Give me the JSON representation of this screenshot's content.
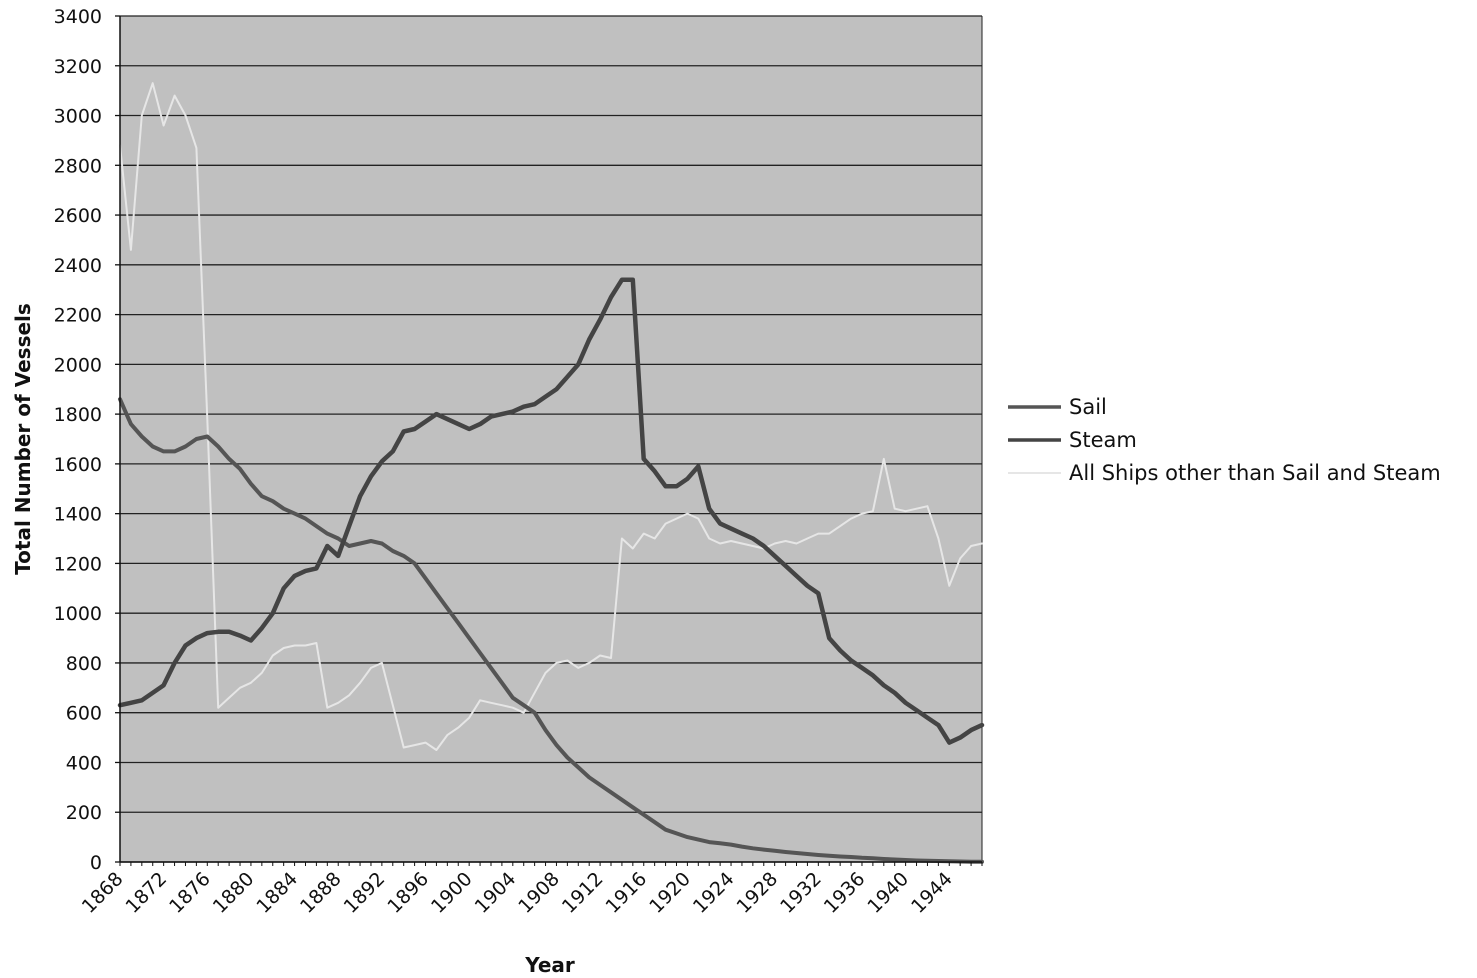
{
  "chart_data": {
    "type": "line",
    "title": "",
    "xlabel": "Year",
    "ylabel": "Total Number of Vessels",
    "ylim": [
      0,
      3400
    ],
    "xlim": [
      1868,
      1947
    ],
    "y_ticks": [
      "0",
      "200",
      "400",
      "600",
      "800",
      "1000",
      "1200",
      "1400",
      "1600",
      "1800",
      "2000",
      "2200",
      "2400",
      "2600",
      "2800",
      "3000",
      "3200",
      "3400"
    ],
    "x_ticks": [
      "1868",
      "1872",
      "1876",
      "1880",
      "1884",
      "1888",
      "1892",
      "1896",
      "1900",
      "1904",
      "1908",
      "1912",
      "1916",
      "1920",
      "1924",
      "1928",
      "1932",
      "1936",
      "1940",
      "1944"
    ],
    "grid": "horizontal",
    "legend_position": "right",
    "colors": {
      "plot_background": "#c0c0c0",
      "grid": "#222222",
      "sail": "#555555",
      "steam": "#444444",
      "other": "#e6e6e6"
    },
    "series": [
      {
        "name": "Sail",
        "color": "#555555",
        "points": [
          [
            1868,
            1860
          ],
          [
            1869,
            1760
          ],
          [
            1870,
            1710
          ],
          [
            1871,
            1670
          ],
          [
            1872,
            1650
          ],
          [
            1873,
            1650
          ],
          [
            1874,
            1670
          ],
          [
            1875,
            1700
          ],
          [
            1876,
            1710
          ],
          [
            1877,
            1670
          ],
          [
            1878,
            1620
          ],
          [
            1879,
            1580
          ],
          [
            1880,
            1520
          ],
          [
            1881,
            1470
          ],
          [
            1882,
            1450
          ],
          [
            1883,
            1420
          ],
          [
            1884,
            1400
          ],
          [
            1885,
            1380
          ],
          [
            1886,
            1350
          ],
          [
            1887,
            1320
          ],
          [
            1888,
            1300
          ],
          [
            1889,
            1270
          ],
          [
            1890,
            1280
          ],
          [
            1891,
            1290
          ],
          [
            1892,
            1280
          ],
          [
            1893,
            1250
          ],
          [
            1894,
            1230
          ],
          [
            1895,
            1200
          ],
          [
            1896,
            1140
          ],
          [
            1897,
            1080
          ],
          [
            1898,
            1020
          ],
          [
            1899,
            960
          ],
          [
            1900,
            900
          ],
          [
            1901,
            840
          ],
          [
            1902,
            780
          ],
          [
            1903,
            720
          ],
          [
            1904,
            660
          ],
          [
            1905,
            630
          ],
          [
            1906,
            600
          ],
          [
            1907,
            530
          ],
          [
            1908,
            470
          ],
          [
            1909,
            420
          ],
          [
            1910,
            380
          ],
          [
            1911,
            340
          ],
          [
            1912,
            310
          ],
          [
            1913,
            280
          ],
          [
            1914,
            250
          ],
          [
            1915,
            220
          ],
          [
            1916,
            190
          ],
          [
            1917,
            160
          ],
          [
            1918,
            130
          ],
          [
            1919,
            115
          ],
          [
            1920,
            100
          ],
          [
            1921,
            90
          ],
          [
            1922,
            80
          ],
          [
            1923,
            75
          ],
          [
            1924,
            70
          ],
          [
            1925,
            62
          ],
          [
            1926,
            55
          ],
          [
            1927,
            50
          ],
          [
            1928,
            45
          ],
          [
            1929,
            40
          ],
          [
            1930,
            36
          ],
          [
            1931,
            32
          ],
          [
            1932,
            28
          ],
          [
            1933,
            25
          ],
          [
            1934,
            22
          ],
          [
            1935,
            20
          ],
          [
            1936,
            17
          ],
          [
            1937,
            15
          ],
          [
            1938,
            12
          ],
          [
            1939,
            10
          ],
          [
            1940,
            8
          ],
          [
            1941,
            6
          ],
          [
            1942,
            5
          ],
          [
            1943,
            4
          ],
          [
            1944,
            3
          ],
          [
            1945,
            2
          ],
          [
            1946,
            1
          ],
          [
            1947,
            1
          ]
        ]
      },
      {
        "name": "Steam",
        "color": "#444444",
        "points": [
          [
            1868,
            630
          ],
          [
            1869,
            640
          ],
          [
            1870,
            650
          ],
          [
            1871,
            680
          ],
          [
            1872,
            710
          ],
          [
            1873,
            800
          ],
          [
            1874,
            870
          ],
          [
            1875,
            900
          ],
          [
            1876,
            920
          ],
          [
            1877,
            925
          ],
          [
            1878,
            925
          ],
          [
            1879,
            910
          ],
          [
            1880,
            890
          ],
          [
            1881,
            940
          ],
          [
            1882,
            1000
          ],
          [
            1883,
            1100
          ],
          [
            1884,
            1150
          ],
          [
            1885,
            1170
          ],
          [
            1886,
            1180
          ],
          [
            1887,
            1270
          ],
          [
            1888,
            1230
          ],
          [
            1889,
            1350
          ],
          [
            1890,
            1470
          ],
          [
            1891,
            1550
          ],
          [
            1892,
            1610
          ],
          [
            1893,
            1650
          ],
          [
            1894,
            1730
          ],
          [
            1895,
            1740
          ],
          [
            1896,
            1770
          ],
          [
            1897,
            1800
          ],
          [
            1898,
            1780
          ],
          [
            1899,
            1760
          ],
          [
            1900,
            1740
          ],
          [
            1901,
            1760
          ],
          [
            1902,
            1790
          ],
          [
            1903,
            1800
          ],
          [
            1904,
            1810
          ],
          [
            1905,
            1830
          ],
          [
            1906,
            1840
          ],
          [
            1907,
            1870
          ],
          [
            1908,
            1900
          ],
          [
            1909,
            1950
          ],
          [
            1910,
            2000
          ],
          [
            1911,
            2100
          ],
          [
            1912,
            2180
          ],
          [
            1913,
            2270
          ],
          [
            1914,
            2340
          ],
          [
            1915,
            2340
          ],
          [
            1916,
            1620
          ],
          [
            1917,
            1570
          ],
          [
            1918,
            1510
          ],
          [
            1919,
            1510
          ],
          [
            1920,
            1540
          ],
          [
            1921,
            1590
          ],
          [
            1922,
            1420
          ],
          [
            1923,
            1360
          ],
          [
            1924,
            1340
          ],
          [
            1925,
            1320
          ],
          [
            1926,
            1300
          ],
          [
            1927,
            1270
          ],
          [
            1928,
            1230
          ],
          [
            1929,
            1190
          ],
          [
            1930,
            1150
          ],
          [
            1931,
            1110
          ],
          [
            1932,
            1080
          ],
          [
            1933,
            900
          ],
          [
            1934,
            850
          ],
          [
            1935,
            810
          ],
          [
            1936,
            780
          ],
          [
            1937,
            750
          ],
          [
            1938,
            710
          ],
          [
            1939,
            680
          ],
          [
            1940,
            640
          ],
          [
            1941,
            610
          ],
          [
            1942,
            580
          ],
          [
            1943,
            550
          ],
          [
            1944,
            480
          ],
          [
            1945,
            500
          ],
          [
            1946,
            530
          ],
          [
            1947,
            550
          ]
        ]
      },
      {
        "name": "All Ships other than Sail and Steam",
        "color": "#e6e6e6",
        "points": [
          [
            1868,
            2880
          ],
          [
            1869,
            2460
          ],
          [
            1870,
            3000
          ],
          [
            1871,
            3130
          ],
          [
            1872,
            2960
          ],
          [
            1873,
            3080
          ],
          [
            1874,
            3000
          ],
          [
            1875,
            2870
          ],
          [
            1876,
            1780
          ],
          [
            1877,
            620
          ],
          [
            1878,
            660
          ],
          [
            1879,
            700
          ],
          [
            1880,
            720
          ],
          [
            1881,
            760
          ],
          [
            1882,
            830
          ],
          [
            1883,
            860
          ],
          [
            1884,
            870
          ],
          [
            1885,
            870
          ],
          [
            1886,
            880
          ],
          [
            1887,
            620
          ],
          [
            1888,
            640
          ],
          [
            1889,
            670
          ],
          [
            1890,
            720
          ],
          [
            1891,
            780
          ],
          [
            1892,
            800
          ],
          [
            1893,
            630
          ],
          [
            1894,
            460
          ],
          [
            1895,
            470
          ],
          [
            1896,
            480
          ],
          [
            1897,
            450
          ],
          [
            1898,
            510
          ],
          [
            1899,
            540
          ],
          [
            1900,
            580
          ],
          [
            1901,
            650
          ],
          [
            1902,
            640
          ],
          [
            1903,
            630
          ],
          [
            1904,
            620
          ],
          [
            1905,
            600
          ],
          [
            1906,
            680
          ],
          [
            1907,
            760
          ],
          [
            1908,
            800
          ],
          [
            1909,
            810
          ],
          [
            1910,
            780
          ],
          [
            1911,
            800
          ],
          [
            1912,
            830
          ],
          [
            1913,
            820
          ],
          [
            1914,
            1300
          ],
          [
            1915,
            1260
          ],
          [
            1916,
            1320
          ],
          [
            1917,
            1300
          ],
          [
            1918,
            1360
          ],
          [
            1919,
            1380
          ],
          [
            1920,
            1400
          ],
          [
            1921,
            1380
          ],
          [
            1922,
            1300
          ],
          [
            1923,
            1280
          ],
          [
            1924,
            1290
          ],
          [
            1925,
            1280
          ],
          [
            1926,
            1270
          ],
          [
            1927,
            1260
          ],
          [
            1928,
            1280
          ],
          [
            1929,
            1290
          ],
          [
            1930,
            1280
          ],
          [
            1931,
            1300
          ],
          [
            1932,
            1320
          ],
          [
            1933,
            1320
          ],
          [
            1934,
            1350
          ],
          [
            1935,
            1380
          ],
          [
            1936,
            1400
          ],
          [
            1937,
            1410
          ],
          [
            1938,
            1620
          ],
          [
            1939,
            1420
          ],
          [
            1940,
            1410
          ],
          [
            1941,
            1420
          ],
          [
            1942,
            1430
          ],
          [
            1943,
            1300
          ],
          [
            1944,
            1110
          ],
          [
            1945,
            1220
          ],
          [
            1946,
            1270
          ],
          [
            1947,
            1280
          ]
        ]
      }
    ]
  }
}
